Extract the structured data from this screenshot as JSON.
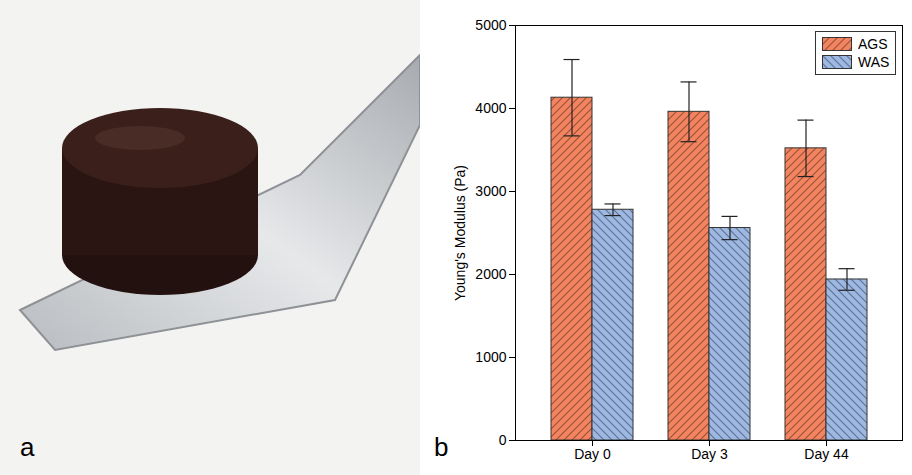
{
  "chart_data": {
    "type": "bar",
    "panel_label": "b",
    "categories": [
      "Day 0",
      "Day 3",
      "Day 44"
    ],
    "y_label": "Young's Modulus (Pa)",
    "ylim": [
      0,
      5000
    ],
    "yticks": [
      0,
      1000,
      2000,
      3000,
      4000,
      5000
    ],
    "legend": "top-right",
    "series": [
      {
        "name": "AGS",
        "color": "#f4845f",
        "values": [
          4130,
          3960,
          3520
        ],
        "errors": [
          460,
          360,
          340
        ]
      },
      {
        "name": "WAS",
        "color": "#9db8e3",
        "values": [
          2780,
          2560,
          1940
        ],
        "errors": [
          70,
          140,
          130
        ]
      }
    ]
  },
  "photo_panel": {
    "panel_label": "a"
  }
}
